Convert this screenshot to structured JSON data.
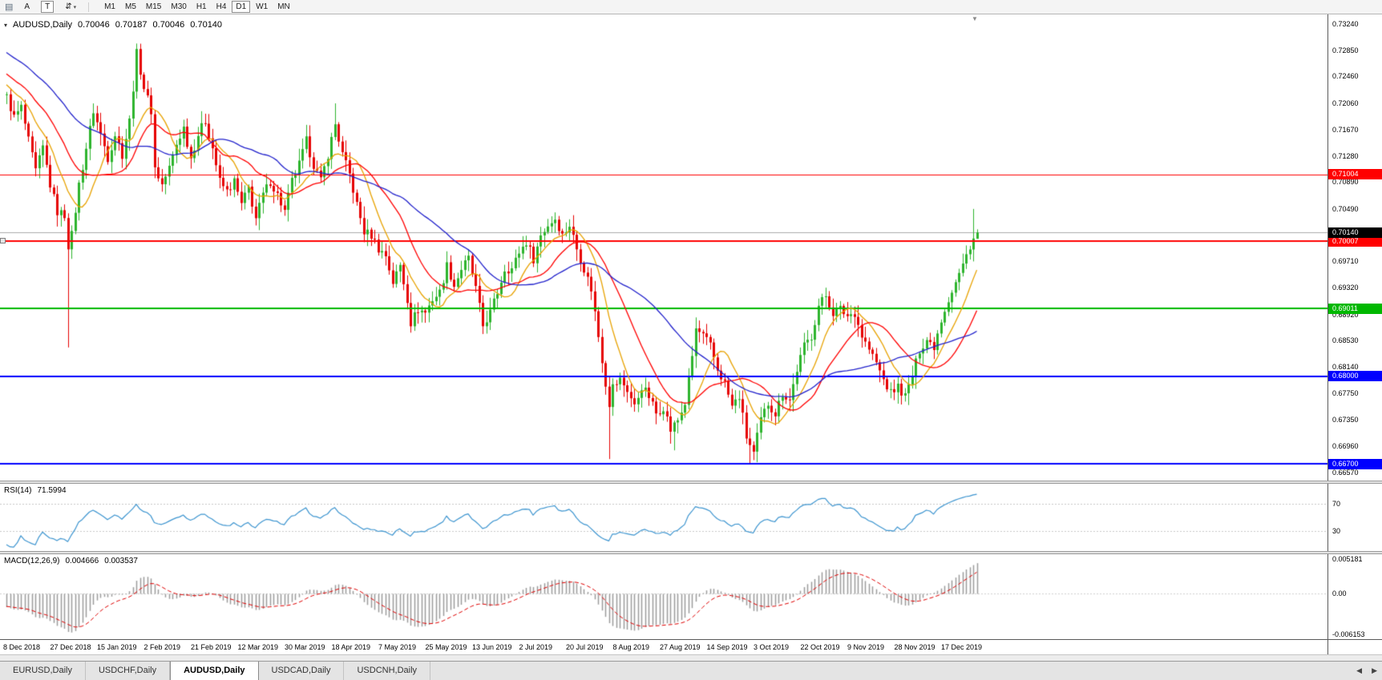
{
  "icons": {
    "menu": "▤",
    "cycle": "⇵",
    "dropdown": "▾",
    "title_marker": "▾",
    "shift_marker": "▼",
    "tab_left": "◀",
    "tab_right": "▶"
  },
  "toolbar": {
    "buttons": [
      {
        "id": "arrow-mode",
        "label": "A",
        "pressed": false
      },
      {
        "id": "text-mode",
        "label": "T",
        "pressed": true
      }
    ],
    "timeframes": [
      "M1",
      "M5",
      "M15",
      "M30",
      "H1",
      "H4",
      "D1",
      "W1",
      "MN"
    ],
    "active_timeframe": "D1"
  },
  "chart": {
    "symbol": "AUDUSD,Daily",
    "open": "0.70046",
    "high": "0.70187",
    "low": "0.70046",
    "close": "0.70140"
  },
  "price_axis": {
    "ticks": [
      "0.73240",
      "0.72850",
      "0.72460",
      "0.72060",
      "0.71670",
      "0.71280",
      "0.70890",
      "0.70490",
      "0.69710",
      "0.69320",
      "0.68920",
      "0.68530",
      "0.68140",
      "0.67750",
      "0.67350",
      "0.66960",
      "0.66570"
    ]
  },
  "rsi": {
    "label": "RSI(14)",
    "value": "71.5994",
    "axis_labels": [
      "70",
      "30"
    ]
  },
  "macd": {
    "label": "MACD(12,26,9)",
    "value_main": "0.004666",
    "value_signal": "0.003537",
    "axis_labels": [
      "0.005181",
      "0.00",
      "-0.006153"
    ]
  },
  "dates": [
    "8 Dec 2018",
    "27 Dec 2018",
    "15 Jan 2019",
    "2 Feb 2019",
    "21 Feb 2019",
    "12 Mar 2019",
    "30 Mar 2019",
    "18 Apr 2019",
    "7 May 2019",
    "25 May 2019",
    "13 Jun 2019",
    "2 Jul 2019",
    "20 Jul 2019",
    "8 Aug 2019",
    "27 Aug 2019",
    "14 Sep 2019",
    "3 Oct 2019",
    "22 Oct 2019",
    "9 Nov 2019",
    "28 Nov 2019",
    "17 Dec 2019"
  ],
  "tabs": {
    "items": [
      {
        "label": "EURUSD,Daily",
        "active": false
      },
      {
        "label": "USDCHF,Daily",
        "active": false
      },
      {
        "label": "AUDUSD,Daily",
        "active": true
      },
      {
        "label": "USDCAD,Daily",
        "active": false
      },
      {
        "label": "USDCNH,Daily",
        "active": false
      }
    ]
  },
  "colors": {
    "up_candle": "#2db42d",
    "down_candle": "#e60000",
    "ma_fast": "#e8a200",
    "ma_mid": "#ff0000",
    "ma_slow": "#2121cc",
    "level_red": "#ff0000",
    "level_green": "#00b800",
    "level_blue": "#0000ff",
    "current_price_line": "#ababab",
    "current_price_tag": "#000000",
    "rsi_line": "#3d95d0",
    "macd_hist": "#9c9c9c",
    "macd_signal": "#e00000"
  },
  "chart_data": {
    "type": "candlestick",
    "symbol": "AUDUSD",
    "timeframe": "Daily",
    "num_candles": 270,
    "label_every": 13,
    "x_labels": [
      "8 Dec 2018",
      "27 Dec 2018",
      "15 Jan 2019",
      "2 Feb 2019",
      "21 Feb 2019",
      "12 Mar 2019",
      "30 Mar 2019",
      "18 Apr 2019",
      "7 May 2019",
      "25 May 2019",
      "13 Jun 2019",
      "2 Jul 2019",
      "20 Jul 2019",
      "8 Aug 2019",
      "27 Aug 2019",
      "14 Sep 2019",
      "3 Oct 2019",
      "22 Oct 2019",
      "9 Nov 2019",
      "28 Nov 2019",
      "17 Dec 2019"
    ],
    "y_ticks": [
      0.7324,
      0.7285,
      0.7246,
      0.7206,
      0.7167,
      0.7128,
      0.7089,
      0.7049,
      0.6971,
      0.6932,
      0.6892,
      0.6853,
      0.6814,
      0.6775,
      0.6735,
      0.6696,
      0.6657
    ],
    "last_candle": {
      "o": 0.70046,
      "h": 0.70187,
      "l": 0.70046,
      "c": 0.7014
    },
    "close_anchors": [
      [
        0,
        0.7215
      ],
      [
        2,
        0.7185
      ],
      [
        4,
        0.72
      ],
      [
        6,
        0.715
      ],
      [
        8,
        0.7105
      ],
      [
        10,
        0.714
      ],
      [
        12,
        0.7085
      ],
      [
        14,
        0.7045
      ],
      [
        16,
        0.704
      ],
      [
        17,
        0.6995
      ],
      [
        18,
        0.701
      ],
      [
        20,
        0.7085
      ],
      [
        22,
        0.714
      ],
      [
        24,
        0.7195
      ],
      [
        26,
        0.716
      ],
      [
        28,
        0.7125
      ],
      [
        30,
        0.716
      ],
      [
        32,
        0.713
      ],
      [
        34,
        0.718
      ],
      [
        36,
        0.728
      ],
      [
        38,
        0.723
      ],
      [
        40,
        0.7195
      ],
      [
        41,
        0.711
      ],
      [
        43,
        0.7085
      ],
      [
        45,
        0.711
      ],
      [
        47,
        0.7145
      ],
      [
        49,
        0.717
      ],
      [
        51,
        0.7125
      ],
      [
        53,
        0.716
      ],
      [
        55,
        0.718
      ],
      [
        57,
        0.714
      ],
      [
        59,
        0.709
      ],
      [
        61,
        0.7075
      ],
      [
        63,
        0.709
      ],
      [
        65,
        0.7055
      ],
      [
        67,
        0.708
      ],
      [
        69,
        0.7035
      ],
      [
        71,
        0.707
      ],
      [
        73,
        0.709
      ],
      [
        75,
        0.707
      ],
      [
        77,
        0.7045
      ],
      [
        79,
        0.709
      ],
      [
        81,
        0.7115
      ],
      [
        83,
        0.715
      ],
      [
        85,
        0.7115
      ],
      [
        87,
        0.709
      ],
      [
        89,
        0.713
      ],
      [
        91,
        0.7175
      ],
      [
        93,
        0.713
      ],
      [
        95,
        0.71
      ],
      [
        97,
        0.7055
      ],
      [
        99,
        0.7015
      ],
      [
        101,
        0.701
      ],
      [
        103,
        0.699
      ],
      [
        105,
        0.698
      ],
      [
        107,
        0.694
      ],
      [
        109,
        0.6965
      ],
      [
        111,
        0.6915
      ],
      [
        112,
        0.688
      ],
      [
        114,
        0.69
      ],
      [
        116,
        0.6895
      ],
      [
        118,
        0.6915
      ],
      [
        120,
        0.6925
      ],
      [
        122,
        0.6965
      ],
      [
        124,
        0.6935
      ],
      [
        126,
        0.696
      ],
      [
        128,
        0.6975
      ],
      [
        130,
        0.693
      ],
      [
        132,
        0.6875
      ],
      [
        134,
        0.6895
      ],
      [
        136,
        0.6925
      ],
      [
        138,
        0.696
      ],
      [
        140,
        0.696
      ],
      [
        142,
        0.6985
      ],
      [
        144,
        0.7
      ],
      [
        146,
        0.6975
      ],
      [
        148,
        0.701
      ],
      [
        150,
        0.7025
      ],
      [
        152,
        0.7035
      ],
      [
        154,
        0.701
      ],
      [
        156,
        0.7025
      ],
      [
        158,
        0.699
      ],
      [
        160,
        0.696
      ],
      [
        162,
        0.693
      ],
      [
        164,
        0.686
      ],
      [
        166,
        0.679
      ],
      [
        167,
        0.676
      ],
      [
        168,
        0.6785
      ],
      [
        170,
        0.6795
      ],
      [
        172,
        0.678
      ],
      [
        174,
        0.6755
      ],
      [
        176,
        0.6785
      ],
      [
        178,
        0.677
      ],
      [
        180,
        0.6745
      ],
      [
        182,
        0.6755
      ],
      [
        184,
        0.672
      ],
      [
        186,
        0.6735
      ],
      [
        188,
        0.676
      ],
      [
        190,
        0.683
      ],
      [
        191,
        0.687
      ],
      [
        193,
        0.686
      ],
      [
        195,
        0.6845
      ],
      [
        197,
        0.681
      ],
      [
        199,
        0.679
      ],
      [
        201,
        0.6755
      ],
      [
        203,
        0.677
      ],
      [
        205,
        0.671
      ],
      [
        207,
        0.6685
      ],
      [
        209,
        0.6735
      ],
      [
        211,
        0.676
      ],
      [
        213,
        0.6745
      ],
      [
        215,
        0.6775
      ],
      [
        217,
        0.6765
      ],
      [
        219,
        0.681
      ],
      [
        221,
        0.6845
      ],
      [
        223,
        0.686
      ],
      [
        225,
        0.6905
      ],
      [
        227,
        0.692
      ],
      [
        229,
        0.6895
      ],
      [
        231,
        0.69
      ],
      [
        233,
        0.689
      ],
      [
        235,
        0.6895
      ],
      [
        237,
        0.686
      ],
      [
        239,
        0.684
      ],
      [
        241,
        0.682
      ],
      [
        243,
        0.6795
      ],
      [
        245,
        0.6775
      ],
      [
        247,
        0.6785
      ],
      [
        249,
        0.677
      ],
      [
        251,
        0.68
      ],
      [
        253,
        0.684
      ],
      [
        255,
        0.6855
      ],
      [
        257,
        0.6845
      ],
      [
        259,
        0.6885
      ],
      [
        261,
        0.6915
      ],
      [
        263,
        0.694
      ],
      [
        265,
        0.6965
      ],
      [
        267,
        0.6995
      ],
      [
        268,
        0.7005
      ],
      [
        269,
        0.7014
      ]
    ],
    "wick_overrides": [
      {
        "i": 17,
        "l": 0.6843
      },
      {
        "i": 36,
        "h": 0.7295
      },
      {
        "i": 91,
        "h": 0.7206
      },
      {
        "i": 112,
        "l": 0.6865
      },
      {
        "i": 167,
        "l": 0.6677
      },
      {
        "i": 185,
        "l": 0.669
      },
      {
        "i": 206,
        "l": 0.667
      },
      {
        "i": 268,
        "h": 0.7049
      }
    ],
    "levels": [
      {
        "price": 0.71004,
        "label": "0.71004",
        "color": "#ff0000",
        "width": 1
      },
      {
        "price": 0.70007,
        "label": "0.70007",
        "color": "#ff0000",
        "width": 2
      },
      {
        "price": 0.69011,
        "label": "0.69011",
        "color": "#00b800",
        "width": 2
      },
      {
        "price": 0.68,
        "label": "0.68000",
        "color": "#0000ff",
        "width": 2
      },
      {
        "price": 0.667,
        "label": "0.66700",
        "color": "#0000ff",
        "width": 2
      }
    ],
    "current_price": {
      "value": 0.7014,
      "label": "0.70140"
    },
    "moving_averages": [
      {
        "period": 10,
        "color": "#e8a200"
      },
      {
        "period": 20,
        "color": "#ff0000"
      },
      {
        "period": 40,
        "color": "#2121cc"
      }
    ],
    "indicators": [
      {
        "type": "rsi",
        "period": 14,
        "current": 71.5994,
        "levels": [
          70,
          30
        ],
        "range": [
          5,
          95
        ]
      },
      {
        "type": "macd",
        "fast": 12,
        "slow": 26,
        "signal": 9,
        "current_macd": 0.004666,
        "current_signal": 0.003537,
        "axis": {
          "top": 0.005181,
          "zero": 0.0,
          "bottom": -0.006153
        }
      }
    ]
  }
}
